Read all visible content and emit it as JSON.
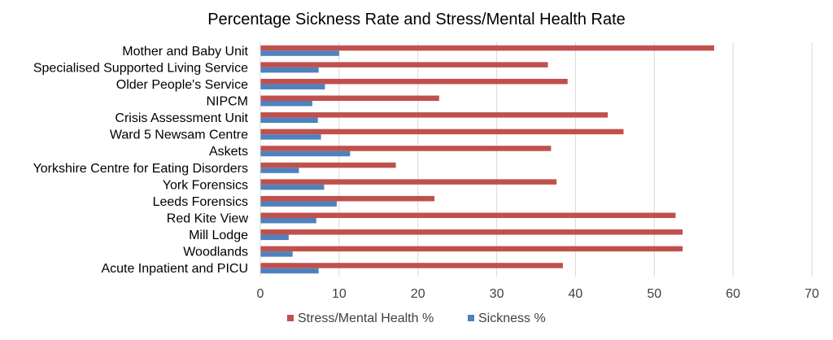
{
  "chart_data": {
    "type": "bar",
    "orientation": "horizontal",
    "title": "Percentage Sickness Rate and Stress/Mental Health Rate",
    "categories": [
      "Mother and Baby Unit",
      "Specialised Supported Living Service",
      "Older People's Service",
      "NIPCM",
      "Crisis Assessment Unit",
      "Ward 5 Newsam Centre",
      "Askets",
      "Yorkshire Centre for Eating Disorders",
      "York Forensics",
      "Leeds Forensics",
      "Red Kite View",
      "Mill Lodge",
      "Woodlands ",
      "Acute Inpatient and PICU"
    ],
    "series": [
      {
        "name": "Stress/Mental Health %",
        "color": "#c0504d",
        "values": [
          57.6,
          36.5,
          39.0,
          22.7,
          44.1,
          46.1,
          36.9,
          17.2,
          37.6,
          22.1,
          52.7,
          53.6,
          53.6,
          38.4
        ]
      },
      {
        "name": "Sickness %",
        "color": "#4f81bd",
        "values": [
          10.0,
          7.4,
          8.2,
          6.6,
          7.3,
          7.7,
          11.4,
          4.9,
          8.1,
          9.7,
          7.1,
          3.6,
          4.1,
          7.4
        ]
      }
    ],
    "xlim": [
      0,
      70
    ],
    "xticks": [
      "0",
      "10",
      "20",
      "30",
      "40",
      "50",
      "60",
      "70"
    ],
    "xlabel": "",
    "ylabel": "",
    "grid": "vertical",
    "legend": "bottom",
    "gridline_color": "#d9d9d9"
  }
}
